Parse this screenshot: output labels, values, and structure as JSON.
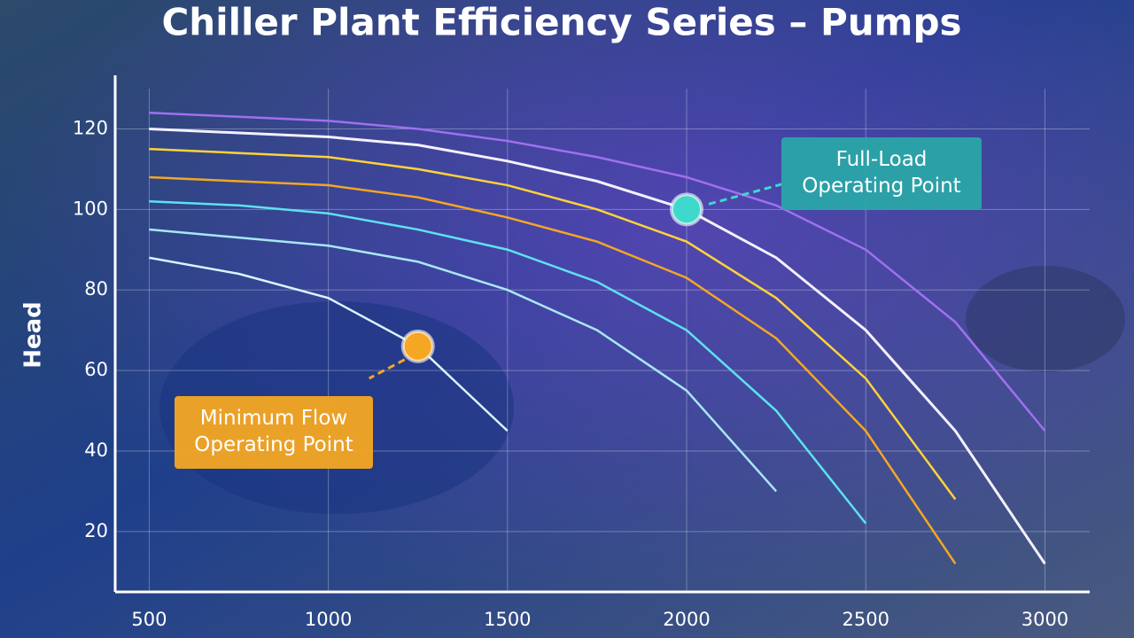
{
  "chart_data": {
    "type": "line",
    "title": "Chiller Plant Efficiency Series – Pumps",
    "y_label": "Head",
    "x": [
      500,
      750,
      1000,
      1250,
      1500,
      1750,
      2000,
      2250,
      2500,
      2750,
      3000
    ],
    "series": [
      {
        "color": "#a070f0",
        "values": [
          124,
          123,
          122,
          120,
          117,
          113,
          108,
          101,
          90,
          72,
          45
        ]
      },
      {
        "color": "#f4f0ff",
        "values": [
          120,
          119,
          118,
          116,
          112,
          107,
          100,
          88,
          70,
          45,
          12
        ]
      },
      {
        "color": "#ffd23a",
        "values": [
          115,
          114,
          113,
          110,
          106,
          100,
          92,
          78,
          58,
          28,
          null
        ]
      },
      {
        "color": "#f5a623",
        "values": [
          108,
          107,
          106,
          103,
          98,
          92,
          83,
          68,
          45,
          12,
          null
        ]
      },
      {
        "color": "#5fe0f0",
        "values": [
          102,
          101,
          99,
          95,
          90,
          82,
          70,
          50,
          22,
          null,
          null
        ]
      },
      {
        "color": "#a8e6f5",
        "values": [
          95,
          93,
          91,
          87,
          80,
          70,
          55,
          30,
          null,
          null,
          null
        ]
      },
      {
        "color": "#d8f4ff",
        "values": [
          88,
          84,
          78,
          66,
          45,
          null,
          null,
          null,
          null,
          null,
          null
        ]
      }
    ],
    "points": [
      {
        "label": "Full-Load Operating Point",
        "x": 2000,
        "y": 100,
        "color": "#3fd8cc"
      },
      {
        "label": "Minimum Flow Operating Point",
        "x": 1250,
        "y": 66,
        "color": "#f5a623"
      }
    ],
    "xlim": [
      405,
      3125
    ],
    "ylim": [
      5,
      130
    ],
    "xticks": [
      500,
      1000,
      1500,
      2000,
      2500,
      3000
    ],
    "yticks": [
      20,
      40,
      60,
      80,
      100,
      120
    ],
    "grid": true
  }
}
